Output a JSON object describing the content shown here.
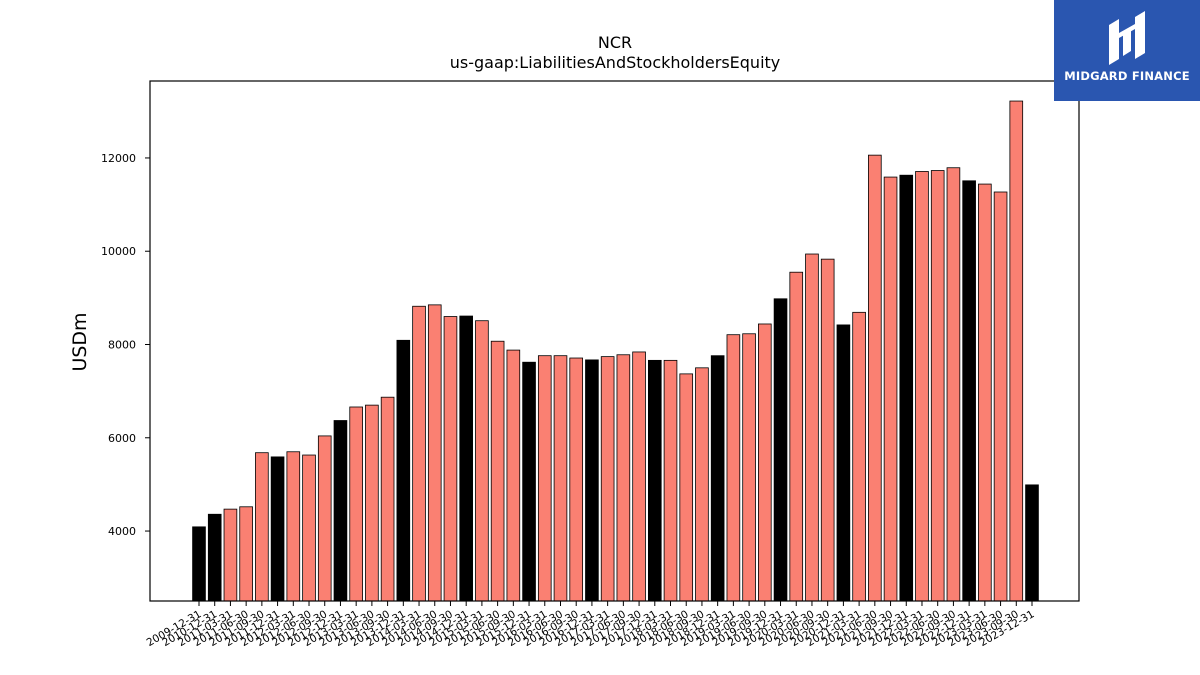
{
  "logo": {
    "text": "MIDGARD FINANCE",
    "background": "#2a56b0",
    "foreground": "#ffffff"
  },
  "chart_data": {
    "type": "bar",
    "title": "NCR",
    "subtitle": "us-gaap:LiabilitiesAndStockholdersEquity",
    "xlabel": "",
    "ylabel": "USDm",
    "ylim": [
      2500,
      13650
    ],
    "yticks": [
      4000,
      6000,
      8000,
      10000,
      12000
    ],
    "grid": false,
    "colors": {
      "annual": "#000000",
      "quarterly": "#fa8072",
      "edge": "#000000"
    },
    "categories": [
      "2009-12-31",
      "2010-12-31",
      "2011-03-31",
      "2011-06-30",
      "2011-09-30",
      "2011-12-31",
      "2012-03-31",
      "2012-06-30",
      "2012-09-30",
      "2012-12-31",
      "2013-03-31",
      "2013-06-30",
      "2013-09-30",
      "2013-12-31",
      "2014-03-31",
      "2014-06-30",
      "2014-09-30",
      "2014-12-31",
      "2015-03-31",
      "2015-06-30",
      "2015-09-30",
      "2015-12-31",
      "2016-03-31",
      "2016-06-30",
      "2016-09-30",
      "2016-12-31",
      "2017-03-31",
      "2017-06-30",
      "2017-09-30",
      "2017-12-31",
      "2018-03-31",
      "2018-06-30",
      "2018-09-30",
      "2018-12-31",
      "2019-03-31",
      "2019-06-30",
      "2019-09-30",
      "2019-12-31",
      "2020-03-31",
      "2020-06-30",
      "2020-09-30",
      "2020-12-31",
      "2021-03-31",
      "2021-06-30",
      "2021-09-30",
      "2021-12-31",
      "2022-03-31",
      "2022-06-30",
      "2022-09-30",
      "2022-12-31",
      "2023-03-31",
      "2023-06-30",
      "2023-09-30",
      "2023-12-31"
    ],
    "tick_labels": [
      "2009-12-31",
      "2010-12-31",
      "2011-03-31",
      "2011-06-30",
      "2011-09-30",
      "2011-12-31",
      "2012-03-31",
      "2012-06-30",
      "2012-09-30",
      "2012-12-31",
      "2013-03-31",
      "2013-06-30",
      "2013-09-30",
      "2013-12-31",
      "2014-03-31",
      "2014-06-30",
      "2014-09-30",
      "2014-12-31",
      "2015-03-31",
      "2015-06-30",
      "2015-09-30",
      "2015-12-31",
      "2016-03-31",
      "2016-06-30",
      "2016-09-30",
      "2016-12-31",
      "2017-03-31",
      "2017-06-30",
      "2017-09-30",
      "2017-12-31",
      "2018-03-31",
      "2018-06-30",
      "2018-09-30",
      "2018-12-31",
      "2019-03-31",
      "2019-06-30",
      "2019-09-30",
      "2019-12-31",
      "2020-03-31",
      "2020-06-30",
      "2020-09-30",
      "2020-12-31",
      "2021-03-31",
      "2021-06-30",
      "2021-09-30",
      "2021-12-31",
      "2022-03-31",
      "2022-06-30",
      "2022-09-30",
      "2022-12-31",
      "2023-03-31",
      "2023-06-30",
      "2023-09-30",
      "2023-12-31"
    ],
    "values": [
      4090,
      4360,
      4470,
      4520,
      5680,
      5590,
      5700,
      5630,
      6040,
      6370,
      6660,
      6700,
      6870,
      8090,
      8820,
      8850,
      8600,
      8610,
      8510,
      8070,
      7880,
      7620,
      7760,
      7760,
      7710,
      7670,
      7740,
      7780,
      7840,
      7660,
      7660,
      7370,
      7500,
      7760,
      8210,
      8230,
      8440,
      8980,
      9550,
      9940,
      9830,
      8420,
      8690,
      12060,
      11590,
      11630,
      11710,
      11730,
      11790,
      11510,
      11440,
      11270,
      13220,
      4990
    ],
    "period": [
      "annual",
      "annual",
      "quarterly",
      "quarterly",
      "quarterly",
      "annual",
      "quarterly",
      "quarterly",
      "quarterly",
      "annual",
      "quarterly",
      "quarterly",
      "quarterly",
      "annual",
      "quarterly",
      "quarterly",
      "quarterly",
      "annual",
      "quarterly",
      "quarterly",
      "quarterly",
      "annual",
      "quarterly",
      "quarterly",
      "quarterly",
      "annual",
      "quarterly",
      "quarterly",
      "quarterly",
      "annual",
      "quarterly",
      "quarterly",
      "quarterly",
      "annual",
      "quarterly",
      "quarterly",
      "quarterly",
      "annual",
      "quarterly",
      "quarterly",
      "quarterly",
      "annual",
      "quarterly",
      "quarterly",
      "quarterly",
      "annual",
      "quarterly",
      "quarterly",
      "quarterly",
      "annual",
      "quarterly",
      "quarterly",
      "quarterly",
      "annual"
    ]
  }
}
